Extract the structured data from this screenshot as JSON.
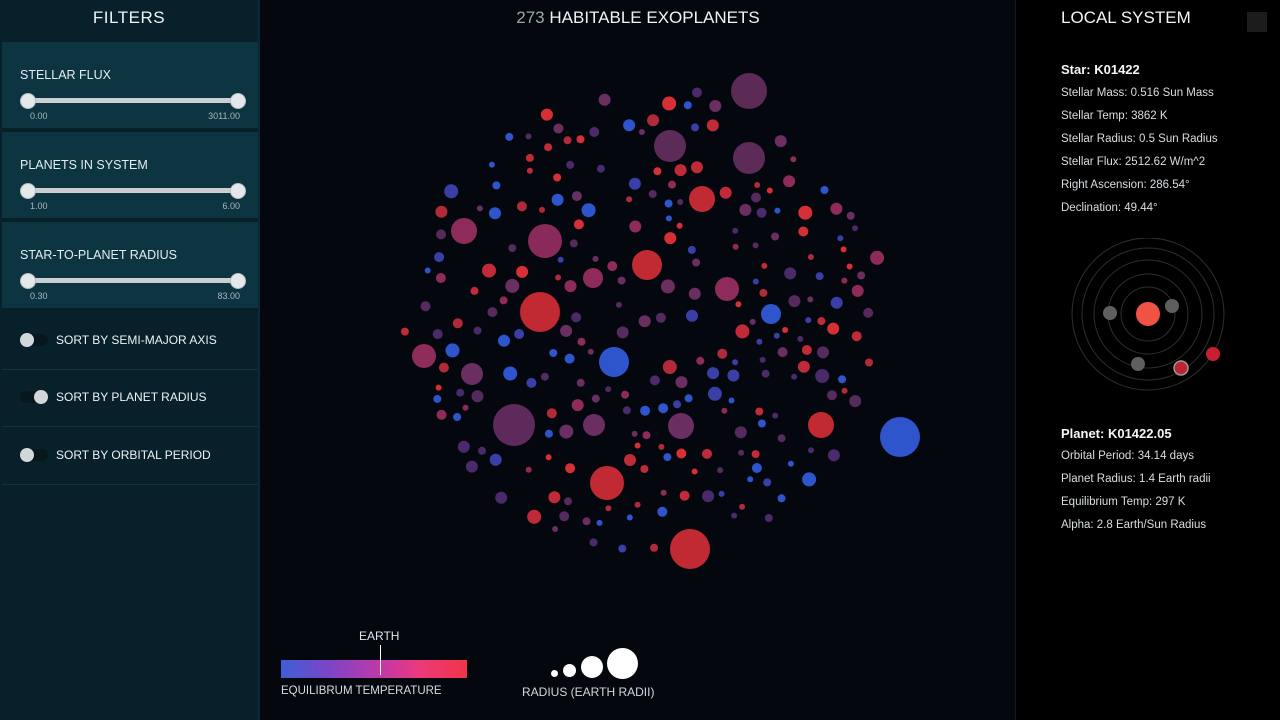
{
  "sidebar": {
    "title": "FILTERS",
    "filters": [
      {
        "label": "STELLAR FLUX",
        "min": "0.00",
        "max": "3011.00"
      },
      {
        "label": "PLANETS IN SYSTEM",
        "min": "1.00",
        "max": "6.00"
      },
      {
        "label": "STAR-TO-PLANET RADIUS",
        "min": "0.30",
        "max": "83.00"
      }
    ],
    "sorts": [
      {
        "label": "SORT BY SEMI-MAJOR AXIS",
        "on": false
      },
      {
        "label": "SORT BY PLANET RADIUS",
        "on": true
      },
      {
        "label": "SORT BY ORBITAL PERIOD",
        "on": false
      }
    ]
  },
  "header": {
    "count": "273",
    "title": "HABITABLE EXOPLANETS"
  },
  "legend": {
    "earth_label": "EARTH",
    "temperature_caption": "EQUILIBRUM TEMPERATURE",
    "radius_caption": "RADIUS (EARTH RADII)",
    "gradient_colors": [
      "#3d5fd4",
      "#7a45c8",
      "#c438a6",
      "#ec3a7a",
      "#f03448"
    ]
  },
  "local_system": {
    "title": "LOCAL SYSTEM",
    "star_heading": "Star: K01422",
    "star_lines": [
      "Stellar Mass: 0.516 Sun Mass",
      "Stellar Temp: 3862 K",
      "Stellar Radius: 0.5 Sun Radius",
      "Stellar Flux: 2512.62 W/m^2",
      "Right Ascension: 286.54°",
      "Declination: 49.44°"
    ],
    "planet_heading": "Planet: K01422.05",
    "planet_lines": [
      "Orbital Period: 34.14 days",
      "Planet Radius: 1.4 Earth radii",
      "Equilibrium Temp: 297 K",
      "Alpha: 2.8 Earth/Sun Radius"
    ]
  },
  "colors": {
    "cold": "#2f55cc",
    "mid": "#6a2e60",
    "warm": "#c12a38",
    "star": "#f05343"
  }
}
